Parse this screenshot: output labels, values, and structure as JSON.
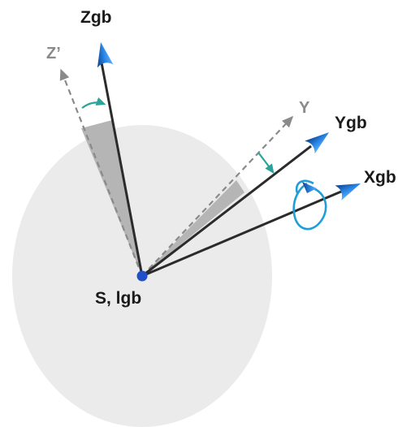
{
  "labels": {
    "z_body": "Zgb",
    "z_prime": "Z’",
    "y_prime": "Y",
    "y_body": "Ygb",
    "x_body": "Xgb",
    "origin": "S, lgb"
  },
  "colors": {
    "disk_fill": "#ebebeb",
    "sector_fill": "#b5b5b5",
    "axis_line": "#2b2b2b",
    "dashed_axis": "#8a8a8a",
    "arrow_blue": "#1e73d8",
    "rotation_arrow_teal": "#2aa39a",
    "spin_ring": "#1f9ed8",
    "origin_dot": "#1f4fc9"
  }
}
